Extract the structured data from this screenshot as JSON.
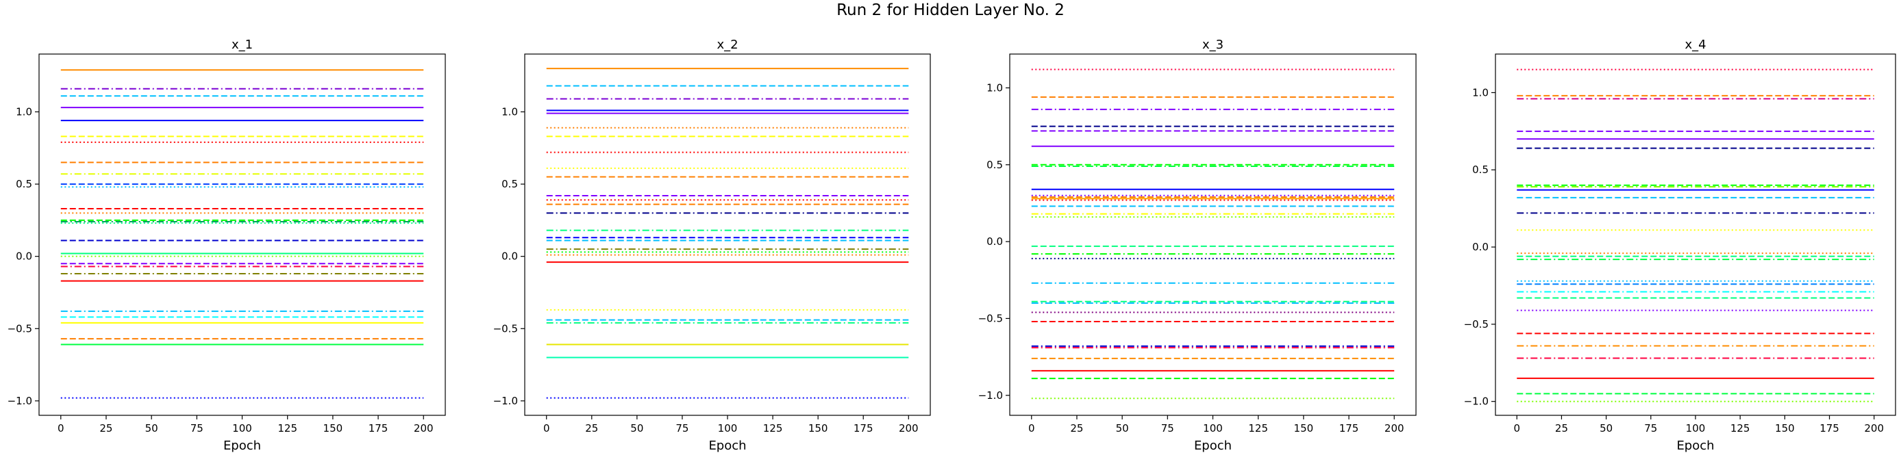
{
  "figure": {
    "title": "Run 2 for Hidden Layer No. 2"
  },
  "chart_data": [
    {
      "type": "line",
      "title": "x_1",
      "xlabel": "Epoch",
      "ylabel": "",
      "xlim": [
        -12,
        212
      ],
      "ylim": [
        -1.1,
        1.4
      ],
      "xticks": [
        0,
        25,
        50,
        75,
        100,
        125,
        150,
        175,
        200
      ],
      "yticks": [
        -1.0,
        -0.5,
        0.0,
        0.5,
        1.0
      ],
      "ytick_labels": [
        "−1.0",
        "−0.5",
        "0.0",
        "0.5",
        "1.0"
      ],
      "x_range": [
        0,
        200
      ],
      "series": [
        {
          "value": 1.29,
          "color": "#ff8c00",
          "style": "solid"
        },
        {
          "value": 1.16,
          "color": "#7b00d4",
          "style": "dashdot"
        },
        {
          "value": 1.11,
          "color": "#00bfff",
          "style": "dashed"
        },
        {
          "value": 1.03,
          "color": "#8000ff",
          "style": "solid"
        },
        {
          "value": 0.94,
          "color": "#0000ff",
          "style": "solid"
        },
        {
          "value": 0.83,
          "color": "#ffff00",
          "style": "dashed"
        },
        {
          "value": 0.79,
          "color": "#ff0000",
          "style": "dotted"
        },
        {
          "value": 0.65,
          "color": "#ff7f00",
          "style": "dashed"
        },
        {
          "value": 0.57,
          "color": "#e6ff00",
          "style": "dashdot"
        },
        {
          "value": 0.5,
          "color": "#0040ff",
          "style": "dashed"
        },
        {
          "value": 0.48,
          "color": "#00bfff",
          "style": "dotted"
        },
        {
          "value": 0.33,
          "color": "#ff0000",
          "style": "dashed"
        },
        {
          "value": 0.3,
          "color": "#ff8000",
          "style": "dotted"
        },
        {
          "value": 0.25,
          "color": "#00ff00",
          "style": "dashed"
        },
        {
          "value": 0.24,
          "color": "#00a060",
          "style": "dashdot"
        },
        {
          "value": 0.23,
          "color": "#00ff80",
          "style": "dotted"
        },
        {
          "value": 0.11,
          "color": "#0000cd",
          "style": "dashed"
        },
        {
          "value": 0.02,
          "color": "#00ff7f",
          "style": "solid"
        },
        {
          "value": 0.0,
          "color": "#7fff00",
          "style": "dotted"
        },
        {
          "value": -0.05,
          "color": "#8000ff",
          "style": "dashed"
        },
        {
          "value": -0.07,
          "color": "#ff0040",
          "style": "dashdot"
        },
        {
          "value": -0.12,
          "color": "#808000",
          "style": "dashdot"
        },
        {
          "value": -0.17,
          "color": "#ff0000",
          "style": "solid"
        },
        {
          "value": -0.38,
          "color": "#00bfff",
          "style": "dashdot"
        },
        {
          "value": -0.42,
          "color": "#00ffff",
          "style": "dashed"
        },
        {
          "value": -0.46,
          "color": "#ffff00",
          "style": "solid"
        },
        {
          "value": -0.57,
          "color": "#ff7f00",
          "style": "dashed"
        },
        {
          "value": -0.61,
          "color": "#00ff40",
          "style": "solid"
        },
        {
          "value": -0.98,
          "color": "#0000ff",
          "style": "dotted"
        }
      ]
    },
    {
      "type": "line",
      "title": "x_2",
      "xlabel": "Epoch",
      "ylabel": "",
      "xlim": [
        -12,
        212
      ],
      "ylim": [
        -1.1,
        1.4
      ],
      "xticks": [
        0,
        25,
        50,
        75,
        100,
        125,
        150,
        175,
        200
      ],
      "yticks": [
        -1.0,
        -0.5,
        0.0,
        0.5,
        1.0
      ],
      "ytick_labels": [
        "−1.0",
        "−0.5",
        "0.0",
        "0.5",
        "1.0"
      ],
      "x_range": [
        0,
        200
      ],
      "series": [
        {
          "value": 1.3,
          "color": "#ff8c00",
          "style": "solid"
        },
        {
          "value": 1.18,
          "color": "#00bfff",
          "style": "dashed"
        },
        {
          "value": 1.09,
          "color": "#7b00d4",
          "style": "dashdot"
        },
        {
          "value": 1.01,
          "color": "#0000ff",
          "style": "solid"
        },
        {
          "value": 0.99,
          "color": "#8000ff",
          "style": "solid"
        },
        {
          "value": 0.89,
          "color": "#ff7f00",
          "style": "dotted"
        },
        {
          "value": 0.83,
          "color": "#ffff00",
          "style": "dashed"
        },
        {
          "value": 0.72,
          "color": "#ff0000",
          "style": "dotted"
        },
        {
          "value": 0.61,
          "color": "#ffff00",
          "style": "dotted"
        },
        {
          "value": 0.55,
          "color": "#ff8000",
          "style": "dashed"
        },
        {
          "value": 0.42,
          "color": "#8000ff",
          "style": "dashed"
        },
        {
          "value": 0.39,
          "color": "#ff0000",
          "style": "dotted"
        },
        {
          "value": 0.36,
          "color": "#ff8000",
          "style": "dashed"
        },
        {
          "value": 0.3,
          "color": "#00008b",
          "style": "dashdot"
        },
        {
          "value": 0.18,
          "color": "#00ff80",
          "style": "dashdot"
        },
        {
          "value": 0.13,
          "color": "#0000ff",
          "style": "dashed"
        },
        {
          "value": 0.11,
          "color": "#00bfff",
          "style": "dashed"
        },
        {
          "value": 0.05,
          "color": "#808000",
          "style": "dashdot"
        },
        {
          "value": 0.03,
          "color": "#00ff00",
          "style": "dotted"
        },
        {
          "value": 0.01,
          "color": "#ff8000",
          "style": "dotted"
        },
        {
          "value": -0.04,
          "color": "#ff0000",
          "style": "solid"
        },
        {
          "value": -0.37,
          "color": "#ffff00",
          "style": "dotted"
        },
        {
          "value": -0.44,
          "color": "#00bfff",
          "style": "dashed"
        },
        {
          "value": -0.46,
          "color": "#00ff80",
          "style": "dashdot"
        },
        {
          "value": -0.61,
          "color": "#e6e600",
          "style": "solid"
        },
        {
          "value": -0.7,
          "color": "#00ffb0",
          "style": "solid"
        },
        {
          "value": -0.98,
          "color": "#0000ff",
          "style": "dotted"
        }
      ]
    },
    {
      "type": "line",
      "title": "x_3",
      "xlabel": "Epoch",
      "ylabel": "",
      "xlim": [
        -12,
        212
      ],
      "ylim": [
        -1.13,
        1.22
      ],
      "xticks": [
        0,
        25,
        50,
        75,
        100,
        125,
        150,
        175,
        200
      ],
      "yticks": [
        -1.0,
        -0.5,
        0.0,
        0.5,
        1.0
      ],
      "ytick_labels": [
        "−1.0",
        "−0.5",
        "0.0",
        "0.5",
        "1.0"
      ],
      "x_range": [
        0,
        200
      ],
      "series": [
        {
          "value": 1.12,
          "color": "#ff0040",
          "style": "dotted"
        },
        {
          "value": 0.94,
          "color": "#ff7f00",
          "style": "dashed"
        },
        {
          "value": 0.86,
          "color": "#8000ff",
          "style": "dashdot"
        },
        {
          "value": 0.75,
          "color": "#00008b",
          "style": "dashed"
        },
        {
          "value": 0.72,
          "color": "#8000ff",
          "style": "dashed"
        },
        {
          "value": 0.62,
          "color": "#8000ff",
          "style": "solid"
        },
        {
          "value": 0.5,
          "color": "#00ff00",
          "style": "dashed"
        },
        {
          "value": 0.49,
          "color": "#00ff40",
          "style": "dashdot"
        },
        {
          "value": 0.34,
          "color": "#0000ff",
          "style": "solid"
        },
        {
          "value": 0.3,
          "color": "#8000ff",
          "style": "dotted"
        },
        {
          "value": 0.29,
          "color": "#ff7f00",
          "style": "dashed"
        },
        {
          "value": 0.28,
          "color": "#ffa500",
          "style": "solid"
        },
        {
          "value": 0.27,
          "color": "#ff0000",
          "style": "dotted"
        },
        {
          "value": 0.23,
          "color": "#00bfff",
          "style": "dashed"
        },
        {
          "value": 0.18,
          "color": "#ffff00",
          "style": "dashdot"
        },
        {
          "value": 0.16,
          "color": "#7fff00",
          "style": "dotted"
        },
        {
          "value": -0.03,
          "color": "#00ff7f",
          "style": "dashed"
        },
        {
          "value": -0.08,
          "color": "#00ff00",
          "style": "dashdot"
        },
        {
          "value": -0.11,
          "color": "#00008b",
          "style": "dotted"
        },
        {
          "value": -0.27,
          "color": "#00bfff",
          "style": "dashdot"
        },
        {
          "value": -0.39,
          "color": "#00ff80",
          "style": "dashed"
        },
        {
          "value": -0.4,
          "color": "#00bfff",
          "style": "dashdot"
        },
        {
          "value": -0.46,
          "color": "#800080",
          "style": "dotted"
        },
        {
          "value": -0.52,
          "color": "#ff0000",
          "style": "dashed"
        },
        {
          "value": -0.68,
          "color": "#0000cd",
          "style": "dashdot"
        },
        {
          "value": -0.69,
          "color": "#ff0040",
          "style": "dashdot"
        },
        {
          "value": -0.76,
          "color": "#ff8c00",
          "style": "dashed"
        },
        {
          "value": -0.84,
          "color": "#ff0000",
          "style": "solid"
        },
        {
          "value": -0.89,
          "color": "#00ff00",
          "style": "dashed"
        },
        {
          "value": -1.02,
          "color": "#7fff00",
          "style": "dotted"
        }
      ]
    },
    {
      "type": "line",
      "title": "x_4",
      "xlabel": "Epoch",
      "ylabel": "",
      "xlim": [
        -12,
        212
      ],
      "ylim": [
        -1.09,
        1.25
      ],
      "xticks": [
        0,
        25,
        50,
        75,
        100,
        125,
        150,
        175,
        200
      ],
      "yticks": [
        -1.0,
        -0.5,
        0.0,
        0.5,
        1.0
      ],
      "ytick_labels": [
        "−1.0",
        "−0.5",
        "0.0",
        "0.5",
        "1.0"
      ],
      "x_range": [
        0,
        200
      ],
      "series": [
        {
          "value": 1.15,
          "color": "#ff0040",
          "style": "dotted"
        },
        {
          "value": 0.98,
          "color": "#ff7f00",
          "style": "dashed"
        },
        {
          "value": 0.96,
          "color": "#d4008b",
          "style": "dashdot"
        },
        {
          "value": 0.75,
          "color": "#8000ff",
          "style": "dashed"
        },
        {
          "value": 0.7,
          "color": "#8000ff",
          "style": "solid"
        },
        {
          "value": 0.64,
          "color": "#00008b",
          "style": "dashed"
        },
        {
          "value": 0.4,
          "color": "#00ff00",
          "style": "dashed"
        },
        {
          "value": 0.39,
          "color": "#7fff00",
          "style": "dashdot"
        },
        {
          "value": 0.37,
          "color": "#0000ff",
          "style": "solid"
        },
        {
          "value": 0.32,
          "color": "#00bfff",
          "style": "dashed"
        },
        {
          "value": 0.22,
          "color": "#00008b",
          "style": "dashdot"
        },
        {
          "value": 0.11,
          "color": "#ffff00",
          "style": "dotted"
        },
        {
          "value": -0.04,
          "color": "#ff7f00",
          "style": "dotted"
        },
        {
          "value": -0.06,
          "color": "#00ff7f",
          "style": "dashed"
        },
        {
          "value": -0.08,
          "color": "#00ff40",
          "style": "dashdot"
        },
        {
          "value": -0.22,
          "color": "#00bfff",
          "style": "dotted"
        },
        {
          "value": -0.24,
          "color": "#0080ff",
          "style": "dashed"
        },
        {
          "value": -0.29,
          "color": "#00ffff",
          "style": "dashdot"
        },
        {
          "value": -0.33,
          "color": "#00ff80",
          "style": "dashed"
        },
        {
          "value": -0.41,
          "color": "#8000ff",
          "style": "dotted"
        },
        {
          "value": -0.56,
          "color": "#ff0000",
          "style": "dashed"
        },
        {
          "value": -0.64,
          "color": "#ff8c00",
          "style": "dashdot"
        },
        {
          "value": -0.72,
          "color": "#ff0040",
          "style": "dashdot"
        },
        {
          "value": -0.85,
          "color": "#ff0000",
          "style": "solid"
        },
        {
          "value": -0.95,
          "color": "#00ff40",
          "style": "dashed"
        },
        {
          "value": -1.0,
          "color": "#7fff00",
          "style": "dotted"
        }
      ]
    }
  ]
}
